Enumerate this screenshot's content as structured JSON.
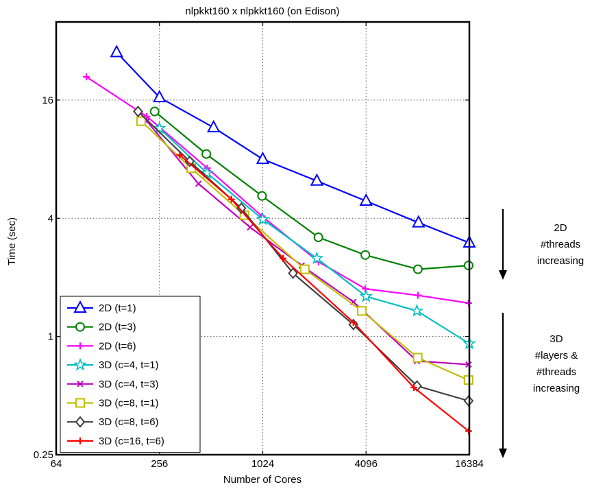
{
  "chart_data": {
    "type": "line",
    "title": "nlpkkt160 x nlpkkt160 (on Edison)",
    "xlabel": "Number of Cores",
    "ylabel": "Time (sec)",
    "xscale": "log2",
    "yscale": "log",
    "xlim": [
      64,
      16384
    ],
    "ylim": [
      0.25,
      40
    ],
    "xticks": [
      {
        "value": 64,
        "label": "64"
      },
      {
        "value": 256,
        "label": "256"
      },
      {
        "value": 1024,
        "label": "1024"
      },
      {
        "value": 4096,
        "label": "4096"
      },
      {
        "value": 16384,
        "label": "16384"
      }
    ],
    "yticks": [
      {
        "value": 0.25,
        "label": "0.25"
      },
      {
        "value": 1,
        "label": "1"
      },
      {
        "value": 4,
        "label": "4"
      },
      {
        "value": 16,
        "label": "16"
      }
    ],
    "grid": true,
    "legend_position": "bottom-left",
    "series": [
      {
        "name": "2D (t=1)",
        "color": "#0000ff",
        "marker": "triangle",
        "x": [
          144,
          256,
          529,
          1024,
          2116,
          4096,
          8281,
          16384
        ],
        "y": [
          28,
          16.5,
          11.6,
          8.0,
          6.2,
          4.9,
          3.8,
          3.0
        ]
      },
      {
        "name": "2D (t=3)",
        "color": "#008000",
        "marker": "circle",
        "x": [
          240,
          480,
          1014,
          2160,
          4056,
          8214,
          16224
        ],
        "y": [
          14.0,
          8.5,
          5.2,
          3.2,
          2.6,
          2.2,
          2.3
        ]
      },
      {
        "name": "2D (t=6)",
        "color": "#ff00ff",
        "marker": "plus",
        "x": [
          96,
          216,
          486,
          1014,
          2166,
          4056,
          8214,
          16224
        ],
        "y": [
          21,
          13.2,
          7.2,
          4.1,
          2.4,
          1.75,
          1.62,
          1.48
        ]
      },
      {
        "name": "3D (c=4, t=1)",
        "color": "#00bfbf",
        "marker": "star",
        "x": [
          256,
          484,
          1024,
          2116,
          4096,
          8100,
          16384
        ],
        "y": [
          11.5,
          6.8,
          3.95,
          2.5,
          1.6,
          1.35,
          0.92
        ]
      },
      {
        "name": "3D (c=4, t=3)",
        "color": "#bf00bf",
        "marker": "x",
        "x": [
          216,
          432,
          864,
          1728,
          3456,
          8112,
          16224
        ],
        "y": [
          12.5,
          6.0,
          3.6,
          2.3,
          1.5,
          0.75,
          0.72
        ]
      },
      {
        "name": "3D (c=8, t=1)",
        "color": "#bfbf00",
        "marker": "square",
        "x": [
          200,
          392,
          800,
          1800,
          3872,
          8192,
          16200
        ],
        "y": [
          12.5,
          7.2,
          4.15,
          2.2,
          1.35,
          0.78,
          0.6
        ]
      },
      {
        "name": "3D (c=8, t=6)",
        "color": "#404040",
        "marker": "diamond",
        "x": [
          192,
          384,
          768,
          1536,
          3456,
          8112,
          16224
        ],
        "y": [
          14.0,
          7.8,
          4.5,
          2.1,
          1.15,
          0.56,
          0.47
        ]
      },
      {
        "name": "3D (c=16, t=6)",
        "color": "#ff0000",
        "marker": "plus",
        "x": [
          336,
          672,
          1344,
          3456,
          7776,
          16224
        ],
        "y": [
          8.4,
          5.0,
          2.5,
          1.18,
          0.55,
          0.33
        ]
      }
    ],
    "annotations": [
      {
        "text_lines": [
          "2D",
          "#threads",
          "increasing"
        ],
        "arrow": "down"
      },
      {
        "text_lines": [
          "3D",
          "#layers &",
          "#threads",
          "increasing"
        ],
        "arrow": "down"
      }
    ]
  }
}
